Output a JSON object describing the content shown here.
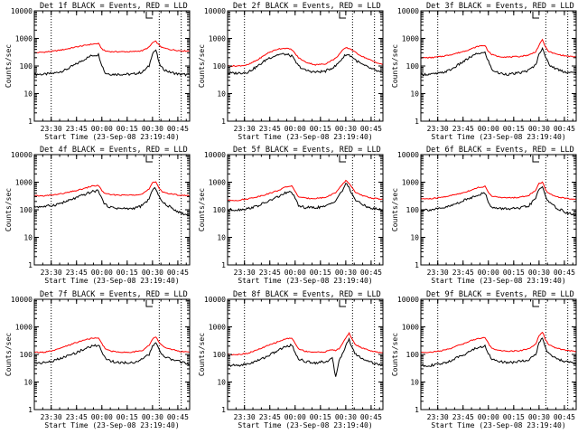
{
  "figure": {
    "xlabel": "Start Time (23-Sep-08 23:19:40)",
    "ylabel": "Counts/sec",
    "x_tick_labels": [
      "23:30",
      "23:45",
      "00:00",
      "00:15",
      "00:30",
      "00:45"
    ],
    "y_tick_labels": [
      "1",
      "10",
      "100",
      "1000",
      "10000"
    ]
  },
  "colors": {
    "events": "#000000",
    "lld": "#ff0000",
    "axes": "#000000"
  },
  "chart_data": [
    {
      "type": "line",
      "title": "Det 1f BLACK = Events, RED = LLD",
      "y_scale": "log",
      "ylim": [
        1,
        10000
      ],
      "x_unit": "minutes since start time",
      "xlim": [
        0,
        92
      ],
      "x_ticks": [
        10,
        25,
        40,
        55,
        70,
        85
      ],
      "vlines": [
        10,
        74,
        87
      ],
      "series": [
        {
          "name": "Events",
          "color": "#000000",
          "x": [
            0,
            6,
            12,
            18,
            24,
            30,
            34,
            38,
            40,
            42,
            46,
            52,
            58,
            64,
            68,
            70,
            72,
            74,
            76,
            80,
            86,
            92
          ],
          "values": [
            50,
            50,
            55,
            70,
            110,
            180,
            240,
            260,
            110,
            55,
            50,
            50,
            50,
            60,
            100,
            300,
            380,
            120,
            80,
            60,
            50,
            48
          ]
        },
        {
          "name": "LLD",
          "color": "#ff0000",
          "x": [
            0,
            6,
            12,
            18,
            24,
            30,
            34,
            38,
            40,
            42,
            46,
            52,
            58,
            64,
            68,
            70,
            72,
            74,
            76,
            80,
            86,
            92
          ],
          "values": [
            300,
            320,
            350,
            400,
            480,
            560,
            620,
            650,
            420,
            350,
            330,
            330,
            330,
            360,
            480,
            700,
            780,
            560,
            460,
            400,
            360,
            350
          ]
        }
      ]
    },
    {
      "type": "line",
      "title": "Det 2f BLACK = Events, RED = LLD",
      "y_scale": "log",
      "ylim": [
        1,
        10000
      ],
      "x_unit": "minutes since start time",
      "xlim": [
        0,
        92
      ],
      "x_ticks": [
        10,
        25,
        40,
        55,
        70,
        85
      ],
      "vlines": [
        10,
        74,
        87
      ],
      "series": [
        {
          "name": "Events",
          "color": "#000000",
          "x": [
            0,
            6,
            12,
            18,
            24,
            30,
            34,
            38,
            40,
            42,
            46,
            52,
            58,
            64,
            68,
            70,
            72,
            74,
            76,
            80,
            86,
            92
          ],
          "values": [
            55,
            55,
            60,
            100,
            190,
            260,
            270,
            230,
            150,
            100,
            70,
            60,
            65,
            100,
            190,
            260,
            250,
            210,
            160,
            110,
            75,
            55
          ]
        },
        {
          "name": "LLD",
          "color": "#ff0000",
          "x": [
            0,
            6,
            12,
            18,
            24,
            30,
            34,
            38,
            40,
            42,
            46,
            52,
            58,
            64,
            68,
            70,
            72,
            74,
            76,
            80,
            86,
            92
          ],
          "values": [
            100,
            100,
            110,
            170,
            300,
            420,
            440,
            400,
            280,
            200,
            140,
            110,
            120,
            190,
            360,
            460,
            430,
            380,
            300,
            220,
            150,
            110
          ]
        }
      ]
    },
    {
      "type": "line",
      "title": "Det 3f BLACK = Events, RED = LLD",
      "y_scale": "log",
      "ylim": [
        1,
        10000
      ],
      "x_unit": "minutes since start time",
      "xlim": [
        0,
        92
      ],
      "x_ticks": [
        10,
        25,
        40,
        55,
        70,
        85
      ],
      "vlines": [
        10,
        74,
        87
      ],
      "series": [
        {
          "name": "Events",
          "color": "#000000",
          "x": [
            0,
            6,
            12,
            18,
            24,
            30,
            34,
            38,
            40,
            42,
            46,
            52,
            58,
            64,
            68,
            70,
            72,
            74,
            76,
            80,
            86,
            92
          ],
          "values": [
            50,
            50,
            55,
            75,
            130,
            220,
            290,
            300,
            150,
            75,
            55,
            50,
            55,
            70,
            110,
            260,
            480,
            200,
            110,
            80,
            60,
            55
          ]
        },
        {
          "name": "LLD",
          "color": "#ff0000",
          "x": [
            0,
            6,
            12,
            18,
            24,
            30,
            34,
            38,
            40,
            42,
            46,
            52,
            58,
            64,
            68,
            70,
            72,
            74,
            76,
            80,
            86,
            92
          ],
          "values": [
            200,
            200,
            220,
            260,
            320,
            420,
            520,
            560,
            340,
            260,
            220,
            210,
            220,
            250,
            330,
            560,
            900,
            460,
            330,
            270,
            230,
            210
          ]
        }
      ]
    },
    {
      "type": "line",
      "title": "Det 4f BLACK = Events, RED = LLD",
      "y_scale": "log",
      "ylim": [
        1,
        10000
      ],
      "x_unit": "minutes since start time",
      "xlim": [
        0,
        92
      ],
      "x_ticks": [
        10,
        25,
        40,
        55,
        70,
        85
      ],
      "vlines": [
        10,
        74,
        87
      ],
      "series": [
        {
          "name": "Events",
          "color": "#000000",
          "x": [
            0,
            6,
            12,
            18,
            24,
            30,
            34,
            38,
            40,
            42,
            46,
            52,
            58,
            64,
            68,
            70,
            72,
            74,
            76,
            80,
            86,
            92
          ],
          "values": [
            130,
            130,
            150,
            190,
            260,
            360,
            450,
            500,
            250,
            150,
            120,
            110,
            110,
            140,
            250,
            520,
            600,
            300,
            180,
            130,
            80,
            60
          ]
        },
        {
          "name": "LLD",
          "color": "#ff0000",
          "x": [
            0,
            6,
            12,
            18,
            24,
            30,
            34,
            38,
            40,
            42,
            46,
            52,
            58,
            64,
            68,
            70,
            72,
            74,
            76,
            80,
            86,
            92
          ],
          "values": [
            320,
            320,
            350,
            400,
            480,
            600,
            720,
            760,
            500,
            380,
            350,
            340,
            340,
            380,
            560,
            950,
            1000,
            600,
            450,
            380,
            340,
            320
          ]
        }
      ]
    },
    {
      "type": "line",
      "title": "Det 5f BLACK = Events, RED = LLD",
      "y_scale": "log",
      "ylim": [
        1,
        10000
      ],
      "x_unit": "minutes since start time",
      "xlim": [
        0,
        92
      ],
      "x_ticks": [
        10,
        25,
        40,
        55,
        70,
        85
      ],
      "vlines": [
        10,
        74,
        87
      ],
      "series": [
        {
          "name": "Events",
          "color": "#000000",
          "x": [
            0,
            6,
            12,
            18,
            24,
            30,
            34,
            38,
            40,
            42,
            46,
            52,
            58,
            64,
            68,
            70,
            72,
            74,
            76,
            80,
            86,
            92
          ],
          "values": [
            100,
            100,
            110,
            140,
            200,
            300,
            400,
            450,
            250,
            140,
            120,
            120,
            130,
            220,
            500,
            900,
            600,
            350,
            220,
            150,
            110,
            100
          ]
        },
        {
          "name": "LLD",
          "color": "#ff0000",
          "x": [
            0,
            6,
            12,
            18,
            24,
            30,
            34,
            38,
            40,
            42,
            46,
            52,
            58,
            64,
            68,
            70,
            72,
            74,
            76,
            80,
            86,
            92
          ],
          "values": [
            220,
            220,
            250,
            300,
            380,
            500,
            650,
            750,
            450,
            300,
            260,
            260,
            280,
            420,
            800,
            1150,
            900,
            600,
            420,
            320,
            260,
            240
          ]
        }
      ]
    },
    {
      "type": "line",
      "title": "Det 6f BLACK = Events, RED = LLD",
      "y_scale": "log",
      "ylim": [
        1,
        10000
      ],
      "x_unit": "minutes since start time",
      "xlim": [
        0,
        92
      ],
      "x_ticks": [
        10,
        25,
        40,
        55,
        70,
        85
      ],
      "vlines": [
        10,
        74,
        87
      ],
      "series": [
        {
          "name": "Events",
          "color": "#000000",
          "x": [
            0,
            6,
            12,
            18,
            24,
            30,
            34,
            38,
            40,
            42,
            46,
            52,
            58,
            64,
            68,
            70,
            72,
            74,
            76,
            80,
            86,
            92
          ],
          "values": [
            100,
            100,
            110,
            140,
            200,
            280,
            360,
            400,
            200,
            120,
            110,
            110,
            110,
            140,
            260,
            550,
            700,
            300,
            180,
            120,
            80,
            60
          ]
        },
        {
          "name": "LLD",
          "color": "#ff0000",
          "x": [
            0,
            6,
            12,
            18,
            24,
            30,
            34,
            38,
            40,
            42,
            46,
            52,
            58,
            64,
            68,
            70,
            72,
            74,
            76,
            80,
            86,
            92
          ],
          "values": [
            250,
            250,
            280,
            330,
            400,
            520,
            650,
            700,
            420,
            320,
            280,
            270,
            280,
            330,
            520,
            900,
            1000,
            520,
            380,
            300,
            260,
            240
          ]
        }
      ]
    },
    {
      "type": "line",
      "title": "Det 7f BLACK = Events, RED = LLD",
      "y_scale": "log",
      "ylim": [
        1,
        10000
      ],
      "x_unit": "minutes since start time",
      "xlim": [
        0,
        92
      ],
      "x_ticks": [
        10,
        25,
        40,
        55,
        70,
        85
      ],
      "vlines": [
        10,
        74,
        87
      ],
      "series": [
        {
          "name": "Events",
          "color": "#000000",
          "x": [
            0,
            6,
            12,
            18,
            24,
            30,
            34,
            38,
            40,
            42,
            46,
            52,
            58,
            64,
            68,
            70,
            72,
            74,
            76,
            80,
            86,
            92
          ],
          "values": [
            50,
            50,
            60,
            80,
            110,
            160,
            200,
            220,
            130,
            75,
            55,
            50,
            50,
            65,
            100,
            200,
            260,
            140,
            90,
            70,
            55,
            45
          ]
        },
        {
          "name": "LLD",
          "color": "#ff0000",
          "x": [
            0,
            6,
            12,
            18,
            24,
            30,
            34,
            38,
            40,
            42,
            46,
            52,
            58,
            64,
            68,
            70,
            72,
            74,
            76,
            80,
            86,
            92
          ],
          "values": [
            120,
            120,
            140,
            190,
            260,
            340,
            380,
            390,
            250,
            160,
            130,
            120,
            120,
            140,
            220,
            360,
            420,
            280,
            200,
            160,
            130,
            120
          ]
        }
      ]
    },
    {
      "type": "line",
      "title": "Det 8f BLACK = Events, RED = LLD",
      "y_scale": "log",
      "ylim": [
        1,
        10000
      ],
      "x_unit": "minutes since start time",
      "xlim": [
        0,
        92
      ],
      "x_ticks": [
        10,
        25,
        40,
        55,
        70,
        85
      ],
      "vlines": [
        10,
        74,
        87
      ],
      "series": [
        {
          "name": "Events",
          "color": "#000000",
          "x": [
            0,
            6,
            12,
            18,
            24,
            30,
            34,
            38,
            40,
            42,
            46,
            52,
            58,
            62,
            64,
            66,
            68,
            70,
            72,
            74,
            76,
            80,
            86,
            92
          ],
          "values": [
            40,
            40,
            45,
            60,
            90,
            140,
            190,
            220,
            120,
            70,
            55,
            50,
            55,
            70,
            15,
            60,
            110,
            200,
            350,
            160,
            100,
            70,
            50,
            40
          ]
        },
        {
          "name": "LLD",
          "color": "#ff0000",
          "x": [
            0,
            6,
            12,
            18,
            24,
            30,
            34,
            38,
            40,
            42,
            46,
            52,
            58,
            62,
            64,
            66,
            68,
            70,
            72,
            74,
            76,
            80,
            86,
            92
          ],
          "values": [
            100,
            100,
            110,
            150,
            210,
            290,
            360,
            400,
            250,
            160,
            130,
            120,
            125,
            150,
            140,
            160,
            240,
            400,
            600,
            330,
            220,
            170,
            130,
            110
          ]
        }
      ]
    },
    {
      "type": "line",
      "title": "Det 9f BLACK = Events, RED = LLD",
      "y_scale": "log",
      "ylim": [
        1,
        10000
      ],
      "x_unit": "minutes since start time",
      "xlim": [
        0,
        92
      ],
      "x_ticks": [
        10,
        25,
        40,
        55,
        70,
        85
      ],
      "vlines": [
        10,
        74,
        87
      ],
      "series": [
        {
          "name": "Events",
          "color": "#000000",
          "x": [
            0,
            6,
            12,
            18,
            24,
            30,
            34,
            38,
            40,
            42,
            46,
            52,
            58,
            64,
            68,
            70,
            72,
            74,
            76,
            80,
            86,
            92
          ],
          "values": [
            40,
            40,
            45,
            60,
            90,
            140,
            180,
            200,
            110,
            70,
            55,
            50,
            55,
            65,
            100,
            250,
            400,
            160,
            100,
            70,
            55,
            45
          ]
        },
        {
          "name": "LLD",
          "color": "#ff0000",
          "x": [
            0,
            6,
            12,
            18,
            24,
            30,
            34,
            38,
            40,
            42,
            46,
            52,
            58,
            64,
            68,
            70,
            72,
            74,
            76,
            80,
            86,
            92
          ],
          "values": [
            120,
            120,
            135,
            170,
            230,
            320,
            380,
            400,
            250,
            170,
            140,
            130,
            135,
            160,
            240,
            460,
            650,
            330,
            220,
            170,
            140,
            130
          ]
        }
      ]
    }
  ]
}
